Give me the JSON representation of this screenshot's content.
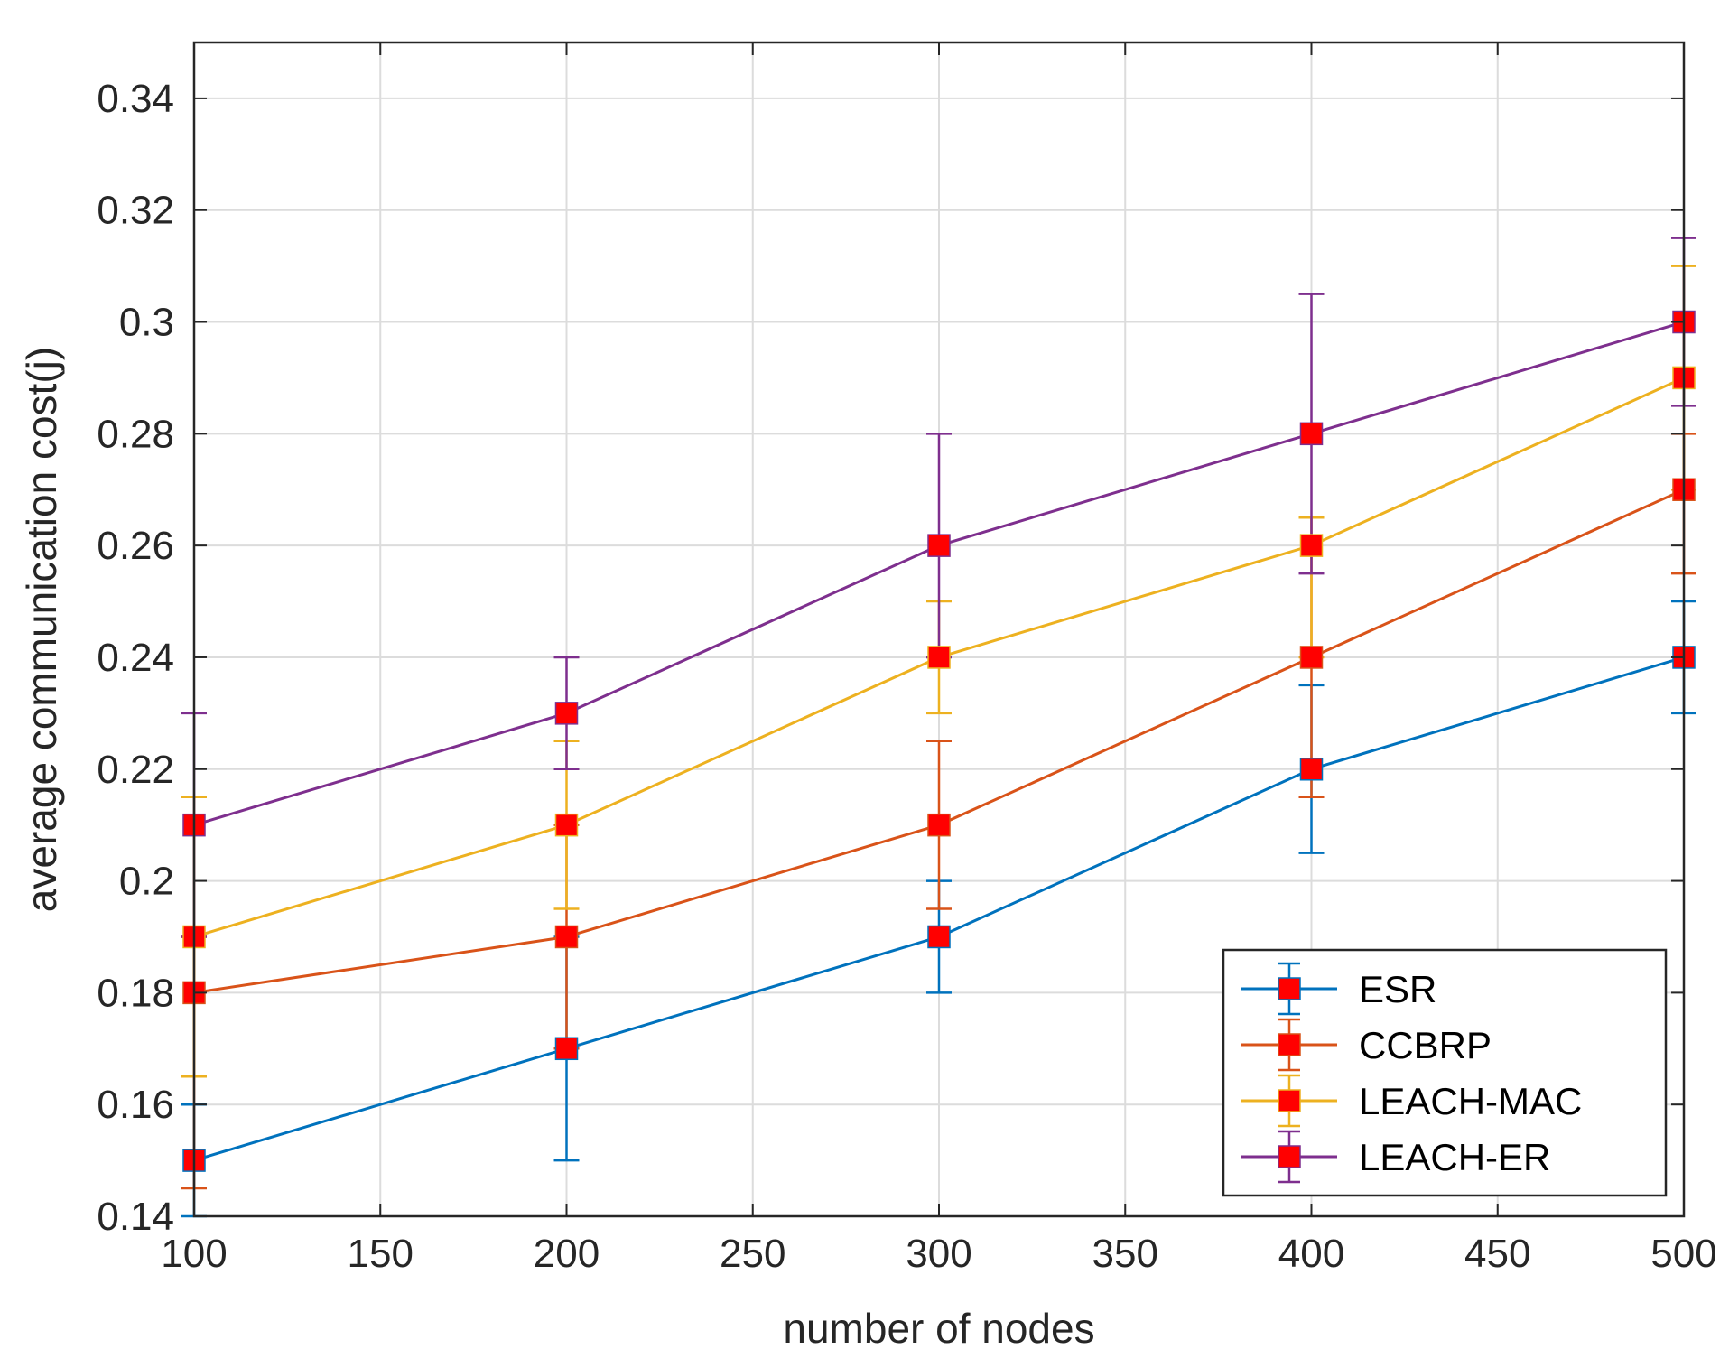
{
  "chart_data": {
    "type": "line",
    "title": "",
    "xlabel": "number of nodes",
    "ylabel": "average communication cost(j)",
    "x": [
      100,
      200,
      300,
      400,
      500
    ],
    "xlim": [
      100,
      500
    ],
    "ylim": [
      0.14,
      0.35
    ],
    "xticks": [
      100,
      150,
      200,
      250,
      300,
      350,
      400,
      450,
      500
    ],
    "xtick_labels": [
      "100",
      "150",
      "200",
      "250",
      "300",
      "350",
      "400",
      "450",
      "500"
    ],
    "yticks": [
      0.14,
      0.16,
      0.18,
      0.2,
      0.22,
      0.24,
      0.26,
      0.28,
      0.3,
      0.32,
      0.34
    ],
    "ytick_labels": [
      "0.14",
      "0.16",
      "0.18",
      "0.2",
      "0.22",
      "0.24",
      "0.26",
      "0.28",
      "0.3",
      "0.32",
      "0.34"
    ],
    "grid": true,
    "legend_position": "bottom-right",
    "marker": {
      "shape": "square",
      "color": "#ff0000"
    },
    "series": [
      {
        "name": "ESR",
        "color": "#0072bd",
        "values": [
          0.15,
          0.17,
          0.19,
          0.22,
          0.24
        ],
        "err_low": [
          0.14,
          0.15,
          0.18,
          0.205,
          0.23
        ],
        "err_high": [
          0.16,
          0.19,
          0.2,
          0.235,
          0.25
        ]
      },
      {
        "name": "CCBRP",
        "color": "#d95319",
        "values": [
          0.18,
          0.19,
          0.21,
          0.24,
          0.27
        ],
        "err_low": [
          0.145,
          0.17,
          0.195,
          0.215,
          0.255
        ],
        "err_high": [
          0.19,
          0.21,
          0.225,
          0.265,
          0.28
        ]
      },
      {
        "name": "LEACH-MAC",
        "color": "#edb120",
        "values": [
          0.19,
          0.21,
          0.24,
          0.26,
          0.29
        ],
        "err_low": [
          0.165,
          0.195,
          0.23,
          0.24,
          0.27
        ],
        "err_high": [
          0.215,
          0.225,
          0.25,
          0.265,
          0.31
        ]
      },
      {
        "name": "LEACH-ER",
        "color": "#7e2f8e",
        "values": [
          0.21,
          0.23,
          0.26,
          0.28,
          0.3
        ],
        "err_low": [
          0.19,
          0.22,
          0.24,
          0.255,
          0.285
        ],
        "err_high": [
          0.23,
          0.24,
          0.28,
          0.305,
          0.315
        ]
      }
    ]
  }
}
